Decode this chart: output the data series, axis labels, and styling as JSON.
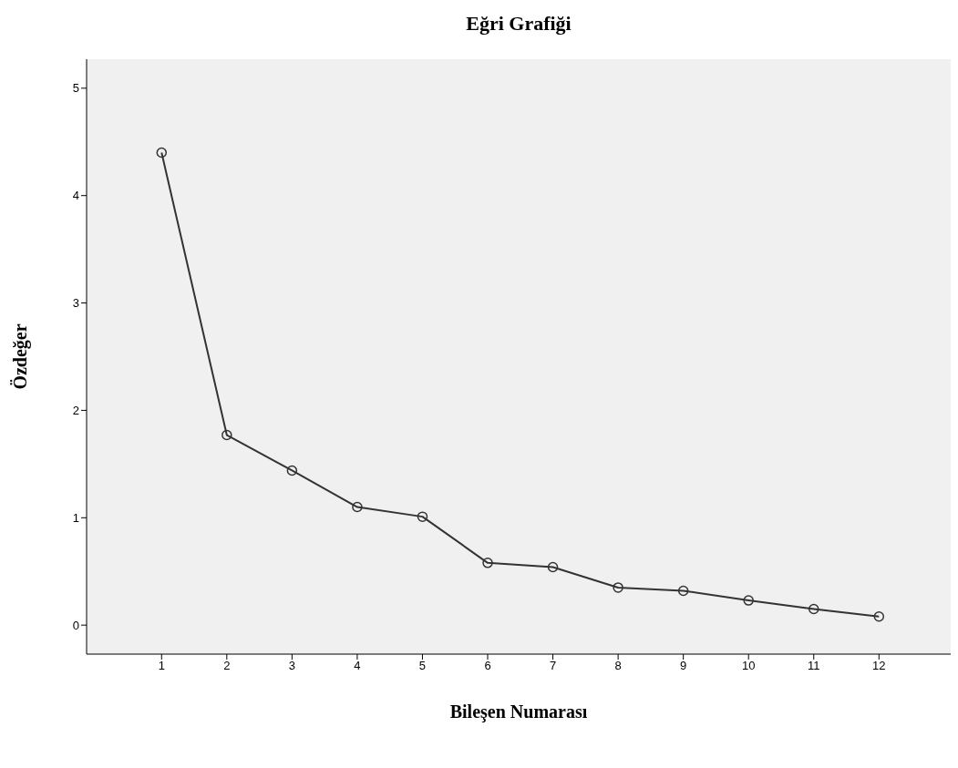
{
  "chart_data": {
    "type": "line",
    "title": "Eğri Grafiği",
    "xlabel": "Bileşen Numarası",
    "ylabel": "Özdeğer",
    "x": [
      1,
      2,
      3,
      4,
      5,
      6,
      7,
      8,
      9,
      10,
      11,
      12
    ],
    "series": [
      {
        "color": "#333333",
        "values": [
          4.4,
          1.77,
          1.44,
          1.1,
          1.01,
          0.58,
          0.54,
          0.35,
          0.32,
          0.23,
          0.15,
          0.08
        ]
      }
    ],
    "xlim": [
      -0.15,
      13.1
    ],
    "xticks": [
      1,
      2,
      3,
      4,
      5,
      6,
      7,
      8,
      9,
      10,
      11,
      12
    ],
    "ylim": [
      -0.27,
      5.27
    ],
    "yticks": [
      0,
      1,
      2,
      3,
      4,
      5
    ],
    "marker": "circle",
    "line_style": "solid",
    "legend": false
  }
}
